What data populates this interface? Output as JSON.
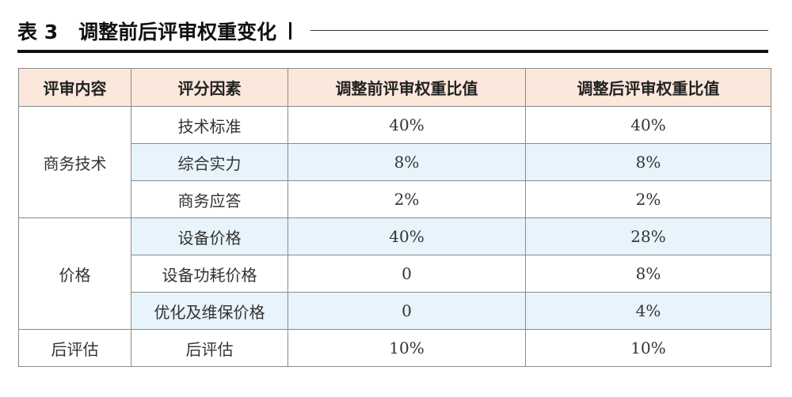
{
  "caption": {
    "number": "表 3",
    "title": "调整前后评审权重变化"
  },
  "table": {
    "headers": [
      "评审内容",
      "评分因素",
      "调整前评审权重比值",
      "调整后评审权重比值"
    ],
    "groups": [
      {
        "content": "商务技术",
        "rows": [
          {
            "factor": "技术标准",
            "before": "40%",
            "after": "40%"
          },
          {
            "factor": "综合实力",
            "before": "8%",
            "after": "8%"
          },
          {
            "factor": "商务应答",
            "before": "2%",
            "after": "2%"
          }
        ]
      },
      {
        "content": "价格",
        "rows": [
          {
            "factor": "设备价格",
            "before": "40%",
            "after": "28%"
          },
          {
            "factor": "设备功耗价格",
            "before": "0",
            "after": "8%"
          },
          {
            "factor": "优化及维保价格",
            "before": "0",
            "after": "4%"
          }
        ]
      },
      {
        "content": "后评估",
        "rows": [
          {
            "factor": "后评估",
            "before": "10%",
            "after": "10%"
          }
        ]
      }
    ]
  },
  "colors": {
    "header_bg": "#fbe7dc",
    "alt_row_bg": "#e8f4fb",
    "border": "#8a8a8a"
  }
}
